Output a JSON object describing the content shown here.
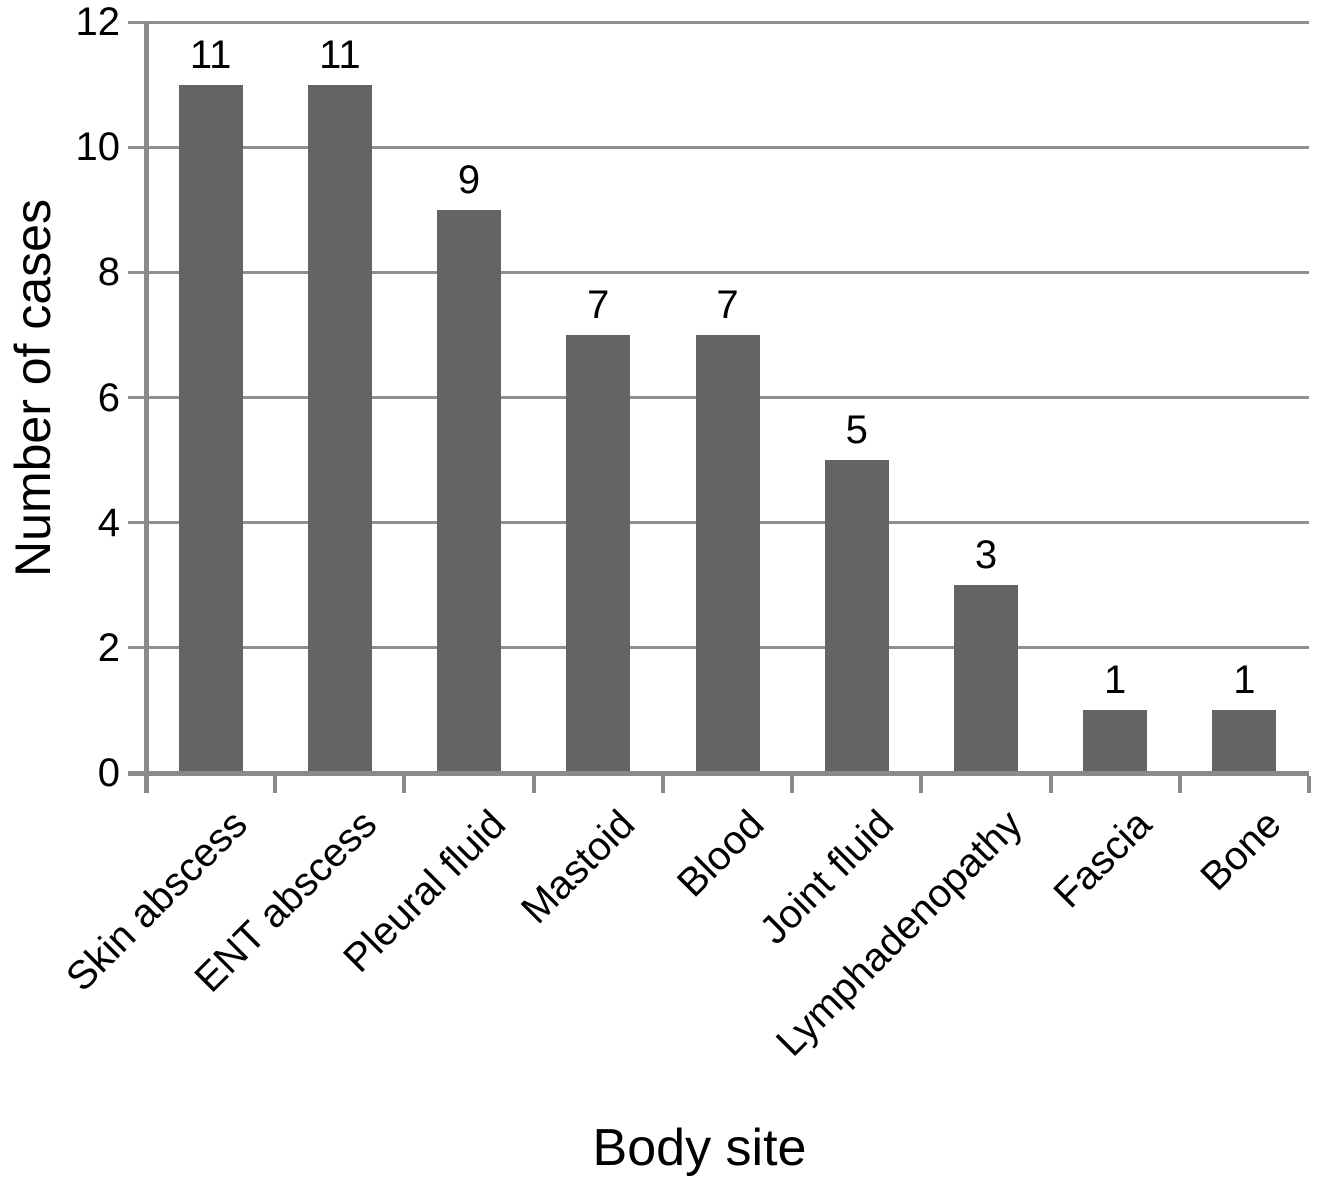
{
  "chart_data": {
    "type": "bar",
    "title": "",
    "xlabel": "Body site",
    "ylabel": "Number of cases",
    "categories": [
      "Skin abscess",
      "ENT abscess",
      "Pleural fluid",
      "Mastoid",
      "Blood",
      "Joint fluid",
      "Lymphadenopathy",
      "Fascia",
      "Bone"
    ],
    "values": [
      11,
      11,
      9,
      7,
      7,
      5,
      3,
      1,
      1
    ],
    "value_labels": [
      "11",
      "11",
      "9",
      "7",
      "7",
      "5",
      "3",
      "1",
      "1"
    ],
    "ylim": [
      0,
      12
    ],
    "yticks": [
      0,
      2,
      4,
      6,
      8,
      10,
      12
    ],
    "grid": "horizontal",
    "legend": "none",
    "bar_color": "#646464",
    "grid_color": "#8f8f8f",
    "axis_color": "#8a8a8a",
    "text_color": "#000000",
    "background_color": "#ffffff"
  }
}
